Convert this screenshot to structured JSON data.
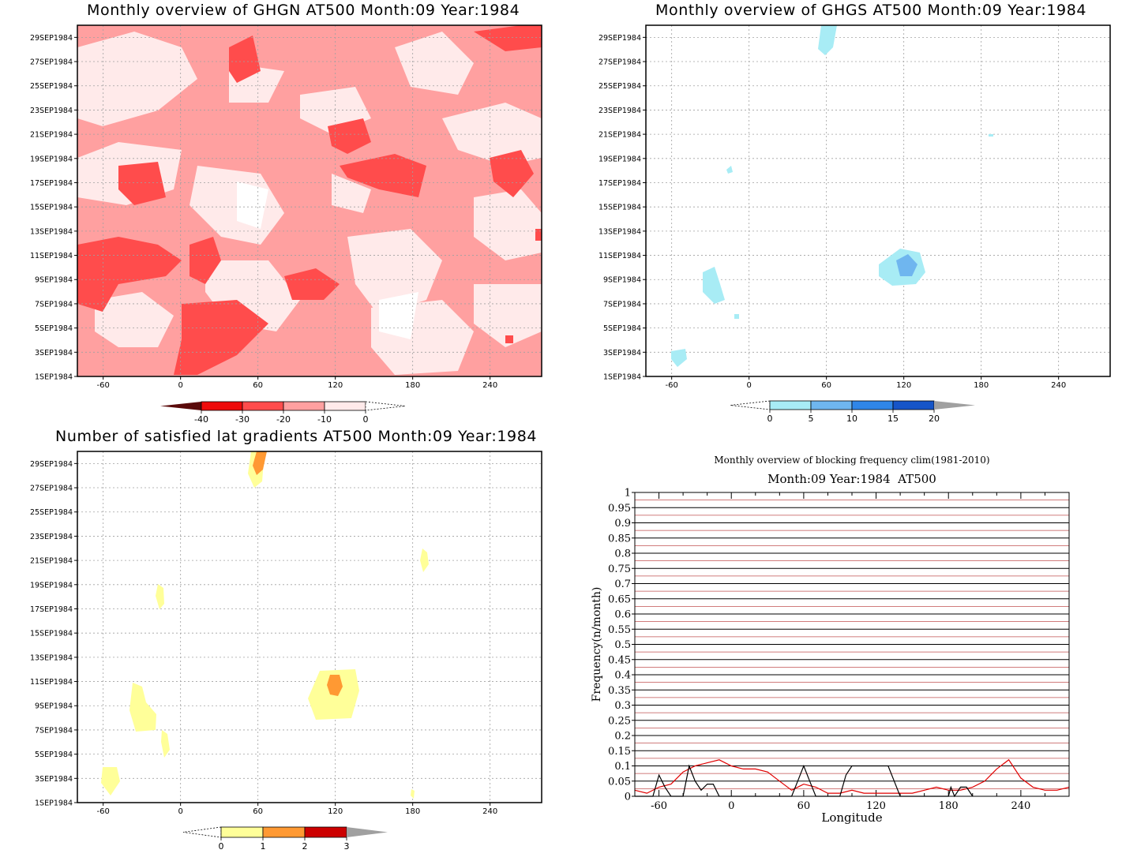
{
  "panels": {
    "top_left": {
      "title": "Monthly overview of GHGN AT500 Month:09 Year:1984",
      "colorbar_labels": [
        "-40",
        "-30",
        "-20",
        "-10",
        "0"
      ]
    },
    "top_right": {
      "title": "Monthly overview of GHGS AT500 Month:09 Year:1984",
      "colorbar_labels": [
        "0",
        "5",
        "10",
        "15",
        "20"
      ]
    },
    "bottom_left": {
      "title": "Number of satisfied lat gradients AT500 Month:09 Year:1984",
      "colorbar_labels": [
        "0",
        "1",
        "2",
        "3"
      ]
    },
    "bottom_right": {
      "title": "Monthly overview of blocking frequency clim(1981-2010)",
      "subtitle": "Month:09 Year:1984  AT500"
    }
  },
  "map_axes": {
    "y_ticks": [
      "1SEP1984",
      "3SEP1984",
      "5SEP1984",
      "7SEP1984",
      "9SEP1984",
      "11SEP1984",
      "13SEP1984",
      "15SEP1984",
      "17SEP1984",
      "19SEP1984",
      "21SEP1984",
      "23SEP1984",
      "25SEP1984",
      "27SEP1984",
      "29SEP1984"
    ],
    "x_ticks": [
      "-60",
      "0",
      "60",
      "120",
      "180",
      "240"
    ]
  },
  "colors": {
    "ghgn": [
      "#5a0a0a",
      "#ee0b0b",
      "#ff4c4c",
      "#ffa0a0",
      "#ffeaea"
    ],
    "ghgs": [
      "#a8ecf5",
      "#6fb6ef",
      "#2f86e8",
      "#1655c8",
      "#a0a0a0"
    ],
    "grad": [
      "#ffff99",
      "#ff9933",
      "#cc0000",
      "#a0a0a0"
    ]
  },
  "chart_data": {
    "type": "line",
    "title": "Monthly overview of blocking frequency clim(1981-2010)",
    "subtitle": "Month:09 Year:1984  AT500",
    "xlabel": "Longitude",
    "ylabel": "Frequency(n/month)",
    "xlim": [
      -80,
      280
    ],
    "ylim": [
      0,
      1
    ],
    "x_ticks": [
      "-60",
      "0",
      "60",
      "120",
      "180",
      "240"
    ],
    "y_ticks": [
      "0",
      "0.05",
      "0.1",
      "0.15",
      "0.2",
      "0.25",
      "0.3",
      "0.35",
      "0.4",
      "0.45",
      "0.5",
      "0.55",
      "0.6",
      "0.65",
      "0.7",
      "0.75",
      "0.8",
      "0.85",
      "0.9",
      "0.95",
      "1"
    ],
    "grid": true,
    "series": [
      {
        "color": "#e00000",
        "x": [
          -80,
          -70,
          -60,
          -50,
          -40,
          -30,
          -20,
          -10,
          0,
          10,
          20,
          30,
          40,
          50,
          60,
          70,
          80,
          90,
          100,
          110,
          120,
          130,
          140,
          150,
          160,
          170,
          180,
          190,
          200,
          210,
          220,
          230,
          240,
          250,
          260,
          270,
          280
        ],
        "y": [
          0.02,
          0.01,
          0.03,
          0.04,
          0.08,
          0.1,
          0.11,
          0.12,
          0.1,
          0.09,
          0.09,
          0.08,
          0.05,
          0.02,
          0.04,
          0.03,
          0.01,
          0.01,
          0.02,
          0.01,
          0.01,
          0.01,
          0.01,
          0.01,
          0.02,
          0.03,
          0.02,
          0.02,
          0.03,
          0.05,
          0.09,
          0.12,
          0.06,
          0.03,
          0.02,
          0.02,
          0.03
        ]
      },
      {
        "color": "#000000",
        "x": [
          -80,
          -65,
          -60,
          -55,
          -50,
          -40,
          -35,
          -30,
          -25,
          -20,
          -15,
          -10,
          50,
          55,
          60,
          65,
          70,
          75,
          90,
          95,
          100,
          105,
          110,
          130,
          135,
          140,
          180,
          182,
          185,
          190,
          195,
          200
        ],
        "y": [
          0,
          0,
          0.07,
          0.03,
          0,
          0,
          0.1,
          0.05,
          0.02,
          0.04,
          0.04,
          0,
          0,
          0.05,
          0.1,
          0.05,
          0,
          0,
          0,
          0.07,
          0.1,
          0.1,
          0.1,
          0.1,
          0.05,
          0,
          0,
          0.03,
          0,
          0.03,
          0.03,
          0
        ]
      }
    ]
  }
}
